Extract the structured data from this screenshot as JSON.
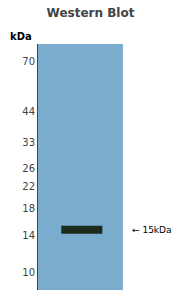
{
  "chart_data": {
    "type": "gel",
    "title": "Western Blot",
    "ylabel": "kDa",
    "annotations": [
      "← 15kDa"
    ],
    "values": [
      14.8
    ],
    "color": "#1c2a1c",
    "log": "y",
    "ylim": [
      8.5,
      82
    ],
    "yticks": [
      70,
      44,
      33,
      26,
      22,
      18,
      14,
      10
    ],
    "grid": false,
    "tick_labels": "y"
  }
}
